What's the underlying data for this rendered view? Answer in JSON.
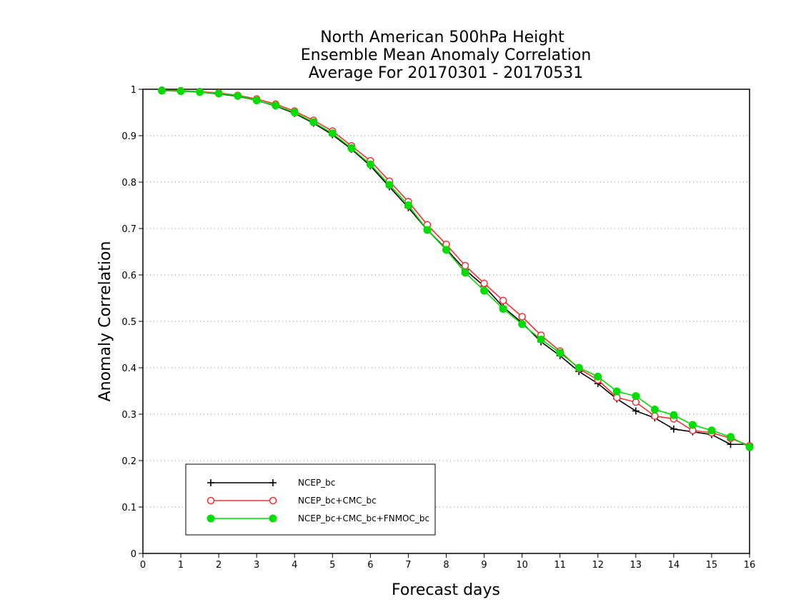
{
  "chart_data": {
    "type": "line",
    "title_lines": [
      "North American 500hPa Height",
      "Ensemble Mean Anomaly Correlation",
      "Average For 20170301 - 20170531"
    ],
    "xlabel": "Forecast days",
    "ylabel": "Anomaly Correlation",
    "xlim": [
      0,
      16
    ],
    "ylim": [
      0,
      1
    ],
    "xticks": [
      0,
      1,
      2,
      3,
      4,
      5,
      6,
      7,
      8,
      9,
      10,
      11,
      12,
      13,
      14,
      15,
      16
    ],
    "yticks": [
      0,
      0.1,
      0.2,
      0.3,
      0.4,
      0.5,
      0.6,
      0.7,
      0.8,
      0.9,
      1
    ],
    "ytick_labels": [
      "0",
      "0.1",
      "0.2",
      "0.3",
      "0.4",
      "0.5",
      "0.6",
      "0.7",
      "0.8",
      "0.9",
      "1"
    ],
    "grid": "horizontal-dotted",
    "legend_position": "bottom-left",
    "x": [
      0.5,
      1,
      1.5,
      2,
      2.5,
      3,
      3.5,
      4,
      4.5,
      5,
      5.5,
      6,
      6.5,
      7,
      7.5,
      8,
      8.5,
      9,
      9.5,
      10,
      10.5,
      11,
      11.5,
      12,
      12.5,
      13,
      13.5,
      14,
      14.5,
      15,
      15.5,
      16
    ],
    "series": [
      {
        "name": "NCEP_bc",
        "color": "#000000",
        "marker": "plus",
        "values": [
          0.997,
          0.996,
          0.994,
          0.99,
          0.985,
          0.976,
          0.964,
          0.948,
          0.927,
          0.902,
          0.871,
          0.835,
          0.79,
          0.745,
          0.697,
          0.656,
          0.611,
          0.576,
          0.531,
          0.497,
          0.456,
          0.426,
          0.392,
          0.366,
          0.333,
          0.307,
          0.292,
          0.268,
          0.262,
          0.256,
          0.235,
          0.235
        ]
      },
      {
        "name": "NCEP_bc+CMC_bc",
        "color": "#ee3333",
        "marker": "open-circle",
        "values": [
          0.998,
          0.997,
          0.995,
          0.992,
          0.987,
          0.979,
          0.968,
          0.953,
          0.933,
          0.91,
          0.878,
          0.846,
          0.802,
          0.758,
          0.708,
          0.666,
          0.62,
          0.582,
          0.545,
          0.51,
          0.47,
          0.436,
          0.398,
          0.374,
          0.336,
          0.326,
          0.296,
          0.29,
          0.265,
          0.26,
          0.248,
          0.232
        ]
      },
      {
        "name": "NCEP_bc+CMC_bc+FNMOC_bc",
        "color": "#00dd00",
        "marker": "filled-circle",
        "values": [
          0.997,
          0.996,
          0.994,
          0.991,
          0.986,
          0.976,
          0.965,
          0.95,
          0.929,
          0.905,
          0.873,
          0.838,
          0.794,
          0.75,
          0.697,
          0.654,
          0.605,
          0.566,
          0.527,
          0.494,
          0.461,
          0.432,
          0.4,
          0.381,
          0.349,
          0.339,
          0.31,
          0.298,
          0.277,
          0.265,
          0.251,
          0.229
        ]
      }
    ]
  }
}
